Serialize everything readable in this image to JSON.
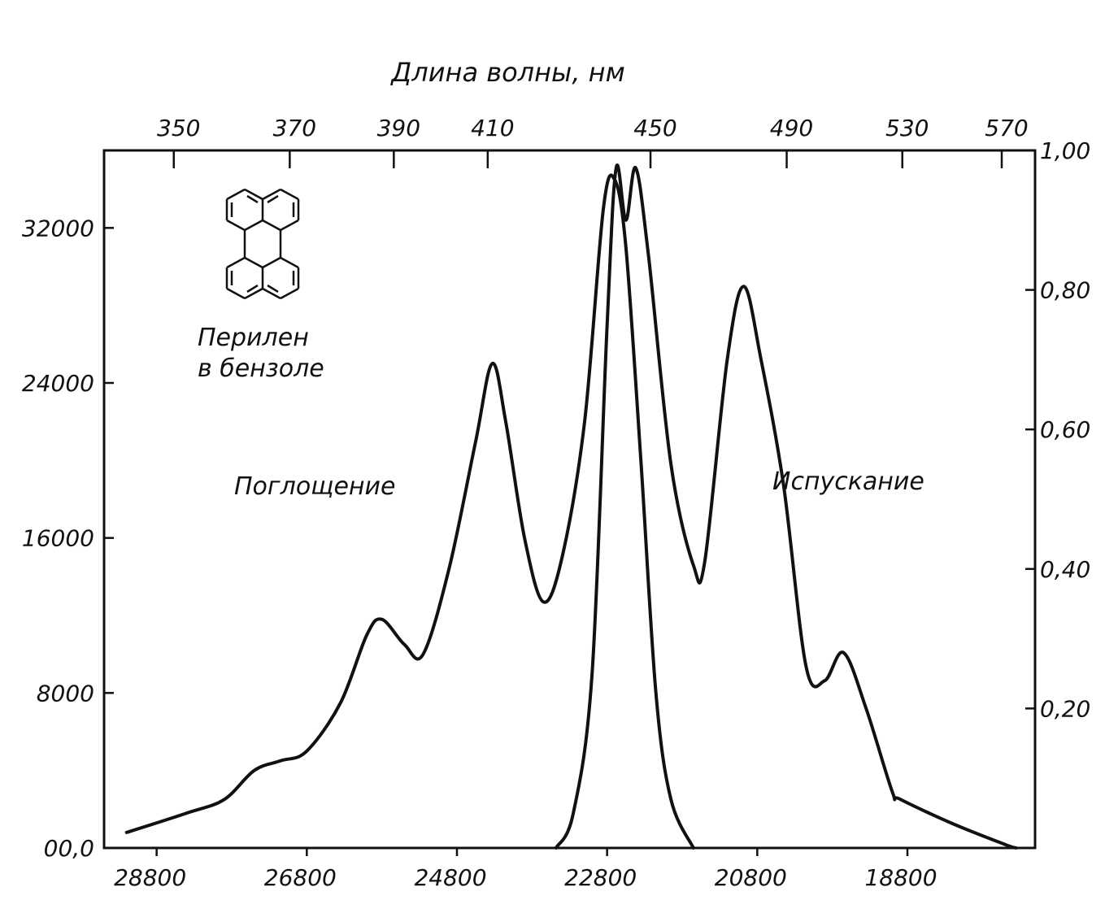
{
  "chart_data": {
    "type": "line",
    "title": "",
    "top_axis": {
      "label": "Длина волны, нм",
      "ticks": [
        {
          "wavelength": 350,
          "label": "350"
        },
        {
          "wavelength": 370,
          "label": "370"
        },
        {
          "wavelength": 390,
          "label": "390"
        },
        {
          "wavelength": 410,
          "label": "410"
        },
        {
          "wavelength": 450,
          "label": "450"
        },
        {
          "wavelength": 490,
          "label": "490"
        },
        {
          "wavelength": 530,
          "label": "530"
        },
        {
          "wavelength": 570,
          "label": "570"
        }
      ]
    },
    "x_axis": {
      "label": "",
      "unit": "cm^-1",
      "direction": "descending",
      "range": [
        29500,
        17100
      ],
      "ticks": [
        {
          "value": 28800,
          "label": "28800"
        },
        {
          "value": 26800,
          "label": "26800"
        },
        {
          "value": 24800,
          "label": "24800"
        },
        {
          "value": 22800,
          "label": "22800"
        },
        {
          "value": 20800,
          "label": "20800"
        },
        {
          "value": 18800,
          "label": "18800"
        }
      ]
    },
    "y_left": {
      "label": "",
      "range": [
        0,
        36000
      ],
      "ticks": [
        {
          "value": 0,
          "label": "00,0"
        },
        {
          "value": 8000,
          "label": "8000"
        },
        {
          "value": 16000,
          "label": "16000"
        },
        {
          "value": 24000,
          "label": "24000"
        },
        {
          "value": 32000,
          "label": "32000"
        }
      ]
    },
    "y_right": {
      "label": "",
      "range": [
        0,
        1.0
      ],
      "ticks": [
        {
          "value": 0.2,
          "label": "0,20"
        },
        {
          "value": 0.4,
          "label": "0,40"
        },
        {
          "value": 0.6,
          "label": "0,60"
        },
        {
          "value": 0.8,
          "label": "0,80"
        },
        {
          "value": 1.0,
          "label": "1,00"
        }
      ]
    },
    "series": [
      {
        "name": "Поглощение",
        "axis": "left",
        "points": [
          [
            29200,
            800
          ],
          [
            28400,
            1800
          ],
          [
            27900,
            2500
          ],
          [
            27500,
            4000
          ],
          [
            27150,
            4500
          ],
          [
            26800,
            5000
          ],
          [
            26350,
            7500
          ],
          [
            26000,
            11000
          ],
          [
            25800,
            11800
          ],
          [
            25500,
            10500
          ],
          [
            25250,
            10000
          ],
          [
            24900,
            14500
          ],
          [
            24550,
            21000
          ],
          [
            24330,
            25000
          ],
          [
            24150,
            22000
          ],
          [
            23900,
            16000
          ],
          [
            23650,
            12700
          ],
          [
            23400,
            15000
          ],
          [
            23100,
            22000
          ],
          [
            22850,
            33000
          ],
          [
            22700,
            34500
          ],
          [
            22550,
            31000
          ],
          [
            22350,
            20000
          ],
          [
            22150,
            8000
          ],
          [
            21950,
            2500
          ],
          [
            21650,
            0
          ]
        ]
      },
      {
        "name": "Испускание",
        "axis": "right",
        "points": [
          [
            23480,
            0
          ],
          [
            23250,
            0.05
          ],
          [
            23000,
            0.25
          ],
          [
            22800,
            0.75
          ],
          [
            22680,
            0.975
          ],
          [
            22550,
            0.9
          ],
          [
            22420,
            0.975
          ],
          [
            22250,
            0.85
          ],
          [
            21950,
            0.55
          ],
          [
            21650,
            0.405
          ],
          [
            21500,
            0.41
          ],
          [
            21200,
            0.7
          ],
          [
            20980,
            0.805
          ],
          [
            20750,
            0.7
          ],
          [
            20450,
            0.52
          ],
          [
            20150,
            0.26
          ],
          [
            19900,
            0.24
          ],
          [
            19650,
            0.28
          ],
          [
            19350,
            0.2
          ],
          [
            19000,
            0.08
          ],
          [
            18900,
            0.07
          ],
          [
            18200,
            0.035
          ],
          [
            17500,
            0.005
          ],
          [
            17350,
            0
          ]
        ]
      }
    ],
    "annotations": {
      "compound_line1": "Перилен",
      "compound_line2": "в бензоле",
      "absorption": "Поглощение",
      "emission": "Испускание"
    },
    "grid": false,
    "legend": "none"
  }
}
